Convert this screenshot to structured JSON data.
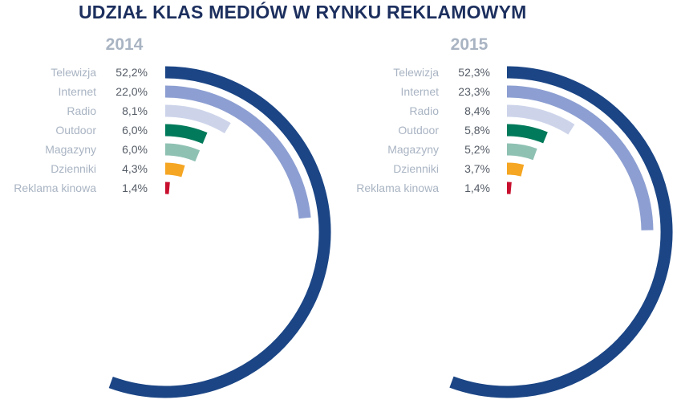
{
  "title": "UDZIAŁ KLAS MEDIÓW W RYNKU REKLAMOWYM",
  "chart_data": {
    "type": "radial-bar",
    "title": "UDZIAŁ KLAS MEDIÓW W RYNKU REKLAMOWYM",
    "categories": [
      "Telewizja",
      "Internet",
      "Radio",
      "Outdoor",
      "Magazyny",
      "Dzienniki",
      "Reklama kinowa"
    ],
    "colors": [
      "#1b4585",
      "#8d9fd2",
      "#cdd4ea",
      "#007a5a",
      "#8fc1b3",
      "#f5a623",
      "#c8102e"
    ],
    "series": [
      {
        "name": "2014",
        "values": [
          52.2,
          22.0,
          8.1,
          6.0,
          6.0,
          4.3,
          1.4
        ],
        "labels": [
          "52,2%",
          "22,0%",
          "8,1%",
          "6,0%",
          "6,0%",
          "4,3%",
          "1,4%"
        ]
      },
      {
        "name": "2015",
        "values": [
          52.3,
          23.3,
          8.4,
          5.8,
          5.2,
          3.7,
          1.4
        ],
        "labels": [
          "52,3%",
          "23,3%",
          "8,4%",
          "5,8%",
          "5,2%",
          "3,7%",
          "1,4%"
        ]
      }
    ]
  }
}
